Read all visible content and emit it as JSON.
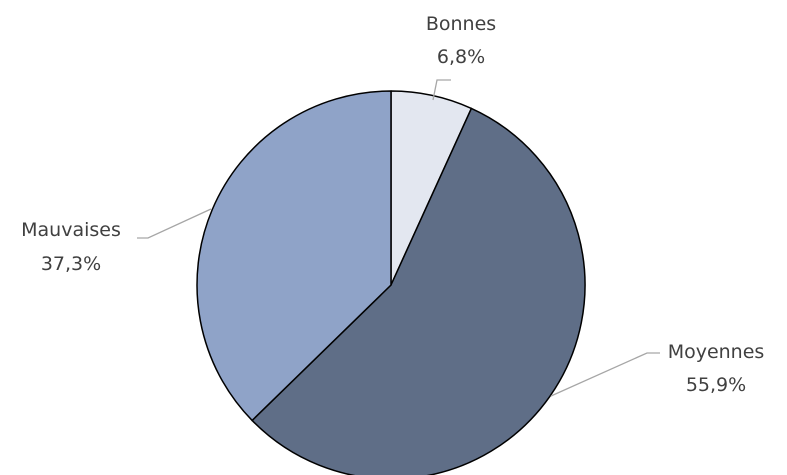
{
  "chart_data": {
    "type": "pie",
    "title": "",
    "start_angle_deg": 0,
    "direction": "clockwise",
    "legend": "none",
    "slices": [
      {
        "label": "Bonnes",
        "value": 6.8,
        "display": "6,8%",
        "color": "#e3e7f0"
      },
      {
        "label": "Moyennes",
        "value": 55.9,
        "display": "55,9%",
        "color": "#5f6e87"
      },
      {
        "label": "Mauvaises",
        "value": 37.3,
        "display": "37,3%",
        "color": "#8fa3c8"
      }
    ]
  }
}
